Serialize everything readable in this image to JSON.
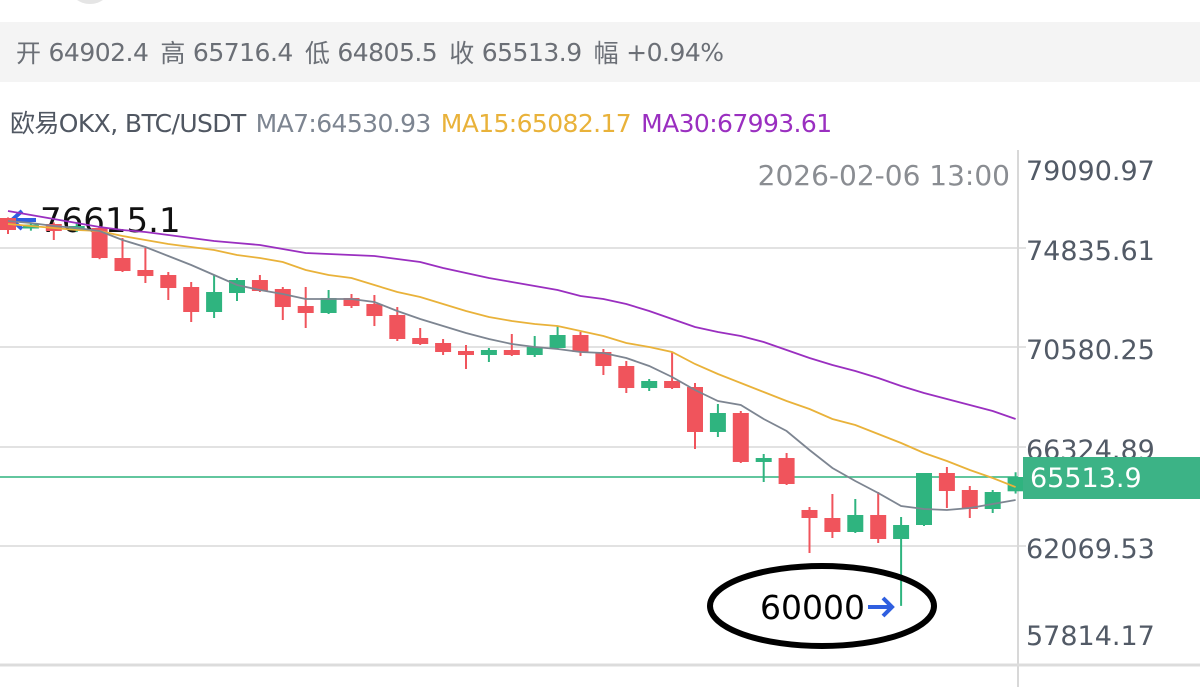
{
  "ohlc": {
    "open_label": "开",
    "open": "64902.4",
    "high_label": "高",
    "high": "65716.4",
    "low_label": "低",
    "low": "64805.5",
    "close_label": "收",
    "close": "65513.9",
    "change_label": "幅",
    "change": "+0.94%"
  },
  "legend": {
    "source": "欧易OKX, BTC/USDT",
    "ma7": "MA7:64530.93",
    "ma15": "MA15:65082.17",
    "ma30": "MA30:67993.61"
  },
  "timestamp": "2026-02-06 13:00",
  "annotations": {
    "high_marker": "76615.1",
    "low_marker": "60000"
  },
  "colors": {
    "up": "#2fb47f",
    "down": "#f0545c",
    "ma7": "#7d8591",
    "ma15": "#e9b23a",
    "ma30": "#9a2fc0",
    "grid": "#e2e2e2",
    "arrow": "#2f5fe0"
  },
  "chart_data": {
    "type": "candlestick",
    "title": "",
    "y_ticks": [
      "79090.97",
      "74835.61",
      "70580.25",
      "66324.89",
      "62069.53",
      "57814.17"
    ],
    "current_price": "65513.9",
    "candles": [
      {
        "o": 76591,
        "h": 76615.1,
        "l": 75907,
        "c": 76078
      },
      {
        "o": 76142,
        "h": 76360,
        "l": 76050,
        "c": 76313
      },
      {
        "o": 76335,
        "h": 76400,
        "l": 75650,
        "c": 76035
      },
      {
        "o": 76078,
        "h": 76380,
        "l": 75990,
        "c": 76249
      },
      {
        "o": 76164,
        "h": 76250,
        "l": 74830,
        "c": 74880
      },
      {
        "o": 74880,
        "h": 75736,
        "l": 74281,
        "c": 74324
      },
      {
        "o": 74367,
        "h": 75308,
        "l": 73811,
        "c": 74110
      },
      {
        "o": 74153,
        "h": 74281,
        "l": 73084,
        "c": 73597
      },
      {
        "o": 73640,
        "h": 73854,
        "l": 72143,
        "c": 72571
      },
      {
        "o": 72571,
        "h": 74153,
        "l": 72314,
        "c": 73426
      },
      {
        "o": 73383,
        "h": 74025,
        "l": 73041,
        "c": 73939
      },
      {
        "o": 73939,
        "h": 74153,
        "l": 73426,
        "c": 73469
      },
      {
        "o": 73555,
        "h": 73640,
        "l": 72228,
        "c": 72784
      },
      {
        "o": 72827,
        "h": 73640,
        "l": 71886,
        "c": 72528
      },
      {
        "o": 72528,
        "h": 73512,
        "l": 72485,
        "c": 73170
      },
      {
        "o": 73170,
        "h": 73341,
        "l": 72742,
        "c": 72827
      },
      {
        "o": 72913,
        "h": 73298,
        "l": 71971,
        "c": 72399
      },
      {
        "o": 72442,
        "h": 72784,
        "l": 71330,
        "c": 71416
      },
      {
        "o": 71459,
        "h": 71886,
        "l": 71159,
        "c": 71202
      },
      {
        "o": 71245,
        "h": 71416,
        "l": 70732,
        "c": 70860
      },
      {
        "o": 70903,
        "h": 71159,
        "l": 70133,
        "c": 70732
      },
      {
        "o": 70732,
        "h": 71031,
        "l": 70432,
        "c": 70946
      },
      {
        "o": 70946,
        "h": 71630,
        "l": 70689,
        "c": 70732
      },
      {
        "o": 70732,
        "h": 71544,
        "l": 70646,
        "c": 71074
      },
      {
        "o": 71031,
        "h": 71972,
        "l": 70988,
        "c": 71587
      },
      {
        "o": 71587,
        "h": 71715,
        "l": 70689,
        "c": 70860
      },
      {
        "o": 70860,
        "h": 70988,
        "l": 69876,
        "c": 70261
      },
      {
        "o": 70261,
        "h": 70475,
        "l": 69107,
        "c": 69320
      },
      {
        "o": 69320,
        "h": 69705,
        "l": 69192,
        "c": 69620
      },
      {
        "o": 69620,
        "h": 70860,
        "l": 69278,
        "c": 69320
      },
      {
        "o": 69363,
        "h": 69534,
        "l": 66711,
        "c": 67439
      },
      {
        "o": 67439,
        "h": 68636,
        "l": 67225,
        "c": 68251
      },
      {
        "o": 68251,
        "h": 68337,
        "l": 66113,
        "c": 66156
      },
      {
        "o": 66156,
        "h": 66498,
        "l": 65300,
        "c": 66326
      },
      {
        "o": 66326,
        "h": 66540,
        "l": 65172,
        "c": 65214
      },
      {
        "o": 64103,
        "h": 64231,
        "l": 62263,
        "c": 63760
      },
      {
        "o": 63760,
        "h": 64787,
        "l": 62905,
        "c": 63162
      },
      {
        "o": 63162,
        "h": 64573,
        "l": 63119,
        "c": 63889
      },
      {
        "o": 63889,
        "h": 64872,
        "l": 62691,
        "c": 62862
      },
      {
        "o": 62862,
        "h": 63803,
        "l": 60000,
        "c": 63461
      },
      {
        "o": 63461,
        "h": 65685,
        "l": 63418,
        "c": 65685
      },
      {
        "o": 65685,
        "h": 65942,
        "l": 64188,
        "c": 64915
      },
      {
        "o": 64958,
        "h": 65129,
        "l": 63760,
        "c": 64145
      },
      {
        "o": 64145,
        "h": 64958,
        "l": 63974,
        "c": 64872
      },
      {
        "o": 64902.4,
        "h": 65716.4,
        "l": 64805.5,
        "c": 65513.9
      }
    ],
    "ma7": [
      76463,
      76378,
      76249,
      76164,
      76035,
      75650,
      75351,
      74966,
      74581,
      74154,
      73726,
      73512,
      73341,
      73127,
      73127,
      73127,
      72999,
      72614,
      72272,
      71972,
      71673,
      71416,
      71202,
      71074,
      70989,
      70860,
      70817,
      70604,
      70261,
      69791,
      69235,
      68765,
      68593,
      67994,
      67481,
      66669,
      65899,
      65343,
      64830,
      64274,
      64145,
      64103,
      64188,
      64359,
      64530.93
    ],
    "ma15": [
      76335,
      76249,
      76164,
      76078,
      76035,
      75822,
      75650,
      75479,
      75351,
      75223,
      75009,
      74881,
      74710,
      74367,
      74154,
      74025,
      73726,
      73426,
      73213,
      72913,
      72614,
      72357,
      72186,
      72058,
      71972,
      71758,
      71545,
      71245,
      71074,
      70860,
      70347,
      69919,
      69534,
      69149,
      68765,
      68422,
      67994,
      67738,
      67353,
      66968,
      66540,
      66198,
      65813,
      65471,
      65082.17
    ],
    "ma30": [
      76891,
      76720,
      76549,
      76378,
      76207,
      76078,
      75993,
      75864,
      75736,
      75608,
      75522,
      75437,
      75266,
      75094,
      75052,
      75009,
      74966,
      74838,
      74710,
      74453,
      74239,
      74025,
      73854,
      73683,
      73512,
      73255,
      73127,
      72913,
      72614,
      72272,
      71930,
      71716,
      71545,
      71288,
      70946,
      70604,
      70304,
      70048,
      69748,
      69406,
      69107,
      68850,
      68593,
      68337,
      67993.61
    ]
  }
}
